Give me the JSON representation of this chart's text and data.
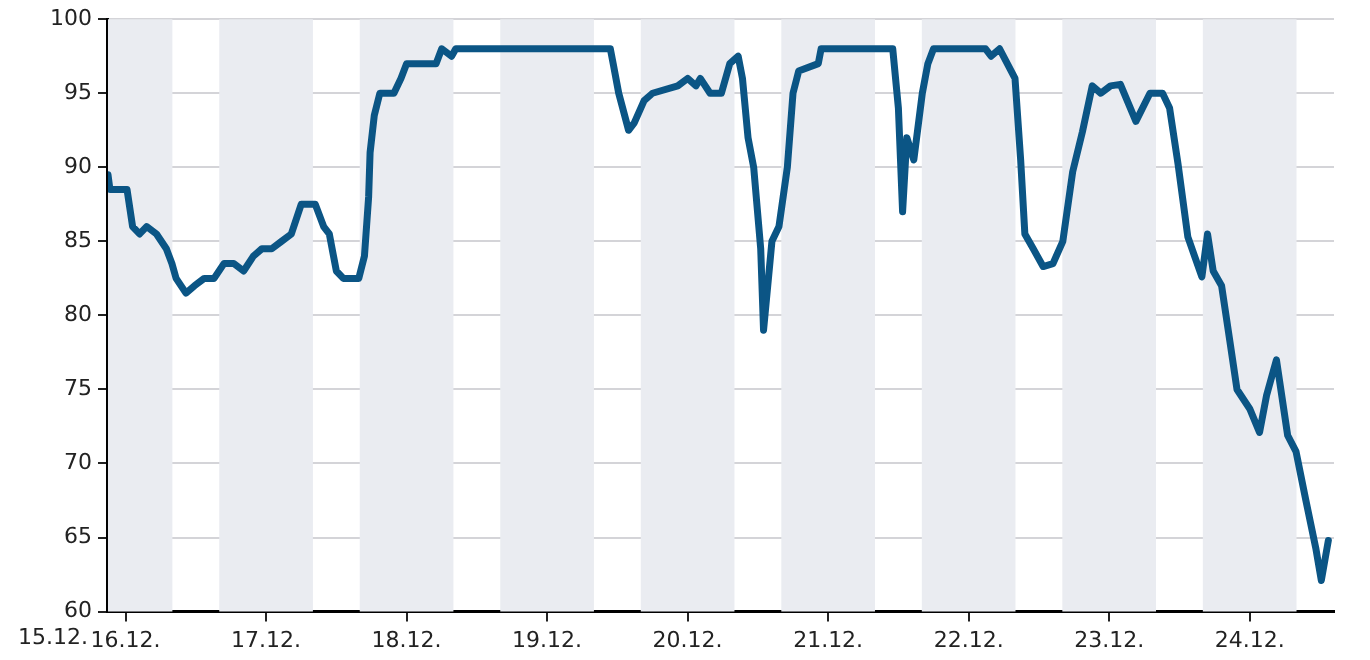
{
  "chart_data": {
    "type": "line",
    "x": [
      "--12-15T21:00",
      "--12-15T21:20",
      "--12-16T00:15",
      "--12-16T01:12",
      "--12-16T02:24",
      "--12-16T03:36",
      "--12-16T05:17",
      "--12-16T06:58",
      "--12-16T07:55",
      "--12-16T08:38",
      "--12-16T10:19",
      "--12-16T11:46",
      "--12-16T13:26",
      "--12-16T15:07",
      "--12-16T16:48",
      "--12-16T18:29",
      "--12-16T20:10",
      "--12-16T21:50",
      "--12-16T23:17",
      "--12-17T00:58",
      "--12-17T02:38",
      "--12-17T04:19",
      "--12-17T06:00",
      "--12-17T08:24",
      "--12-17T09:50",
      "--12-17T10:48",
      "--12-17T12:00",
      "--12-17T13:12",
      "--12-17T14:53",
      "--12-17T15:50",
      "--12-17T16:48",
      "--12-17T17:31",
      "--12-17T17:46",
      "--12-17T18:29",
      "--12-17T19:26",
      "--12-17T21:50",
      "--12-17T23:02",
      "--12-18T00:00",
      "--12-18T05:02",
      "--12-18T06:00",
      "--12-18T07:41",
      "--12-18T08:24",
      "--12-19T10:48",
      "--12-19T11:17",
      "--12-19T12:14",
      "--12-19T13:55",
      "--12-19T14:53",
      "--12-19T16:34",
      "--12-19T18:00",
      "--12-19T22:19",
      "--12-20T00:00",
      "--12-20T01:26",
      "--12-20T02:10",
      "--12-20T03:50",
      "--12-20T05:46",
      "--12-20T07:12",
      "--12-20T08:38",
      "--12-20T09:22",
      "--12-20T10:19",
      "--12-20T11:17",
      "--12-20T12:29",
      "--12-20T12:58",
      "--12-20T14:24",
      "--12-20T15:36",
      "--12-20T17:02",
      "--12-20T18:00",
      "--12-20T18:58",
      "--12-20T22:19",
      "--12-20T22:48",
      "--12-21T11:02",
      "--12-21T12:00",
      "--12-21T12:43",
      "--12-21T13:26",
      "--12-21T14:38",
      "--12-21T16:05",
      "--12-21T17:02",
      "--12-21T18:00",
      "--12-22T02:53",
      "--12-22T03:50",
      "--12-22T05:17",
      "--12-22T07:55",
      "--12-22T08:53",
      "--12-22T09:36",
      "--12-22T11:02",
      "--12-22T12:43",
      "--12-22T14:24",
      "--12-22T16:05",
      "--12-22T17:46",
      "--12-22T19:26",
      "--12-22T21:07",
      "--12-22T22:34",
      "--12-23T00:14",
      "--12-23T01:55",
      "--12-23T04:34",
      "--12-23T06:58",
      "--12-23T09:07",
      "--12-23T10:19",
      "--12-23T11:46",
      "--12-23T13:26",
      "--12-23T15:50",
      "--12-23T16:48",
      "--12-23T17:46",
      "--12-23T19:12",
      "--12-23T20:38",
      "--12-23T21:50",
      "--12-24T00:00",
      "--12-24T01:41",
      "--12-24T02:53",
      "--12-24T04:34",
      "--12-24T06:29",
      "--12-24T07:55",
      "--12-24T09:36",
      "--12-24T11:17",
      "--12-24T12:14",
      "--12-24T13:26"
    ],
    "series": [
      {
        "color": "#0b5585",
        "values": [
          89.5,
          88.5,
          88.5,
          86,
          85.5,
          86,
          85.5,
          84.5,
          83.5,
          82.5,
          81.5,
          82,
          82.5,
          82.5,
          83.5,
          83.5,
          83,
          84,
          84.5,
          84.5,
          85,
          85.5,
          87.5,
          87.5,
          86,
          85.5,
          83,
          82.5,
          82.5,
          82.5,
          84,
          88,
          91,
          93.5,
          95,
          95,
          96,
          97,
          97,
          98,
          97.5,
          98,
          98,
          97,
          95,
          92.5,
          93,
          94.5,
          95,
          95.5,
          96,
          95.5,
          96,
          95,
          95,
          97,
          97.5,
          96,
          92,
          90,
          84.5,
          79,
          85,
          86,
          90,
          95,
          96.5,
          97,
          98,
          98,
          94,
          87,
          92,
          90.5,
          95,
          97,
          98,
          98,
          97.5,
          98,
          96,
          90.5,
          85.5,
          84.5,
          83.3,
          83.5,
          85,
          89.7,
          92.4,
          95.5,
          95,
          95.5,
          95.6,
          93.1,
          95,
          95,
          94,
          90.2,
          85.3,
          82.6,
          85.5,
          83,
          82,
          78.2,
          75,
          73.7,
          72.1,
          74.6,
          77,
          71.9,
          70.8,
          67.5,
          64.3,
          62.1,
          64.8
        ]
      }
    ],
    "xlim": [
      "--12-15T21:00",
      "--12-24T14:24"
    ],
    "annotations": [
      "15.12."
    ],
    "xticks": [
      {
        "value": "--12-16",
        "label": "16.12."
      },
      {
        "value": "--12-17",
        "label": "17.12."
      },
      {
        "value": "--12-18",
        "label": "18.12."
      },
      {
        "value": "--12-19",
        "label": "19.12."
      },
      {
        "value": "--12-20",
        "label": "20.12."
      },
      {
        "value": "--12-21",
        "label": "21.12."
      },
      {
        "value": "--12-22",
        "label": "22.12."
      },
      {
        "value": "--12-23",
        "label": "23.12."
      },
      {
        "value": "--12-24",
        "label": "24.12."
      }
    ],
    "ylim": [
      60,
      100
    ],
    "yticks": [
      60,
      65,
      70,
      75,
      80,
      85,
      90,
      95,
      100
    ],
    "bands": [
      {
        "axis": "x",
        "from": "--12-15T21:00",
        "to": "--12-16T08:00",
        "color": "#eaecf1"
      },
      {
        "axis": "x",
        "from": "--12-16T16:00",
        "to": "--12-17T08:00",
        "color": "#eaecf1"
      },
      {
        "axis": "x",
        "from": "--12-17T16:00",
        "to": "--12-18T08:00",
        "color": "#eaecf1"
      },
      {
        "axis": "x",
        "from": "--12-18T16:00",
        "to": "--12-19T08:00",
        "color": "#eaecf1"
      },
      {
        "axis": "x",
        "from": "--12-19T16:00",
        "to": "--12-20T08:00",
        "color": "#eaecf1"
      },
      {
        "axis": "x",
        "from": "--12-20T16:00",
        "to": "--12-21T08:00",
        "color": "#eaecf1"
      },
      {
        "axis": "x",
        "from": "--12-21T16:00",
        "to": "--12-22T08:00",
        "color": "#eaecf1"
      },
      {
        "axis": "x",
        "from": "--12-22T16:00",
        "to": "--12-23T08:00",
        "color": "#eaecf1"
      },
      {
        "axis": "x",
        "from": "--12-23T16:00",
        "to": "--12-24T08:00",
        "color": "#eaecf1"
      }
    ],
    "grid": true,
    "marker": "none",
    "line_style": "solid"
  }
}
